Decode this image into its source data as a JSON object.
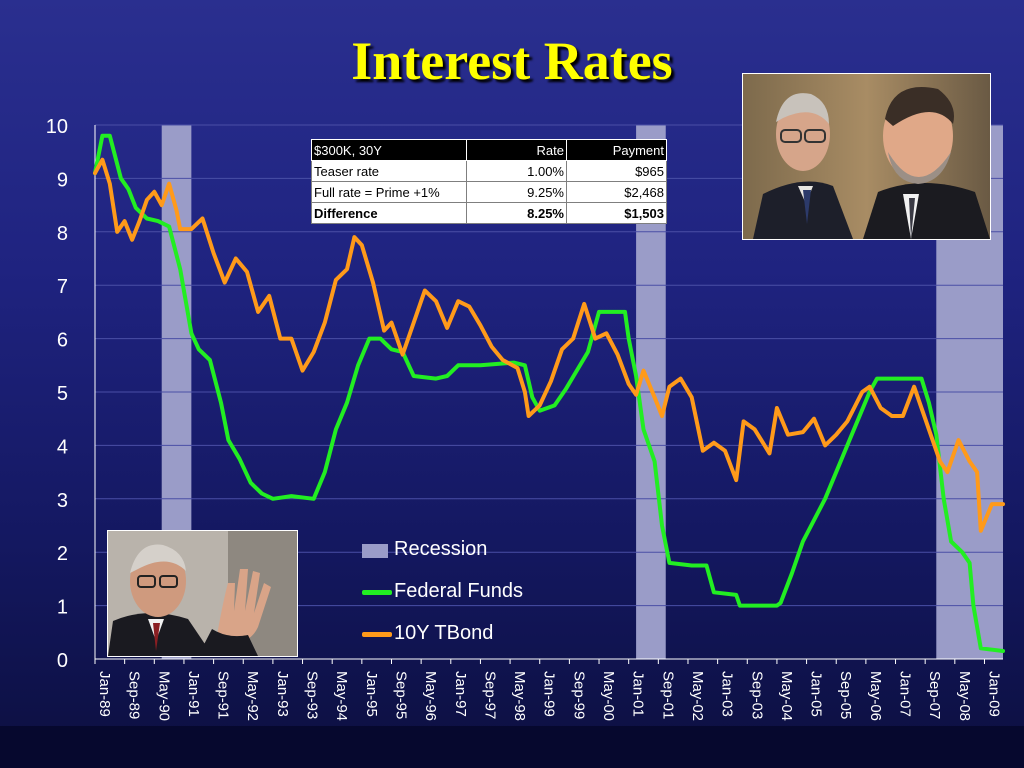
{
  "title": "Interest Rates",
  "colors": {
    "recession": "#9a9cc8",
    "fed_funds": "#22ee22",
    "tbond": "#ff9a1a",
    "title": "#ffff00",
    "axis_text": "#ffffff"
  },
  "loan_table": {
    "header": [
      "$300K, 30Y",
      "Rate",
      "Payment"
    ],
    "rows": [
      [
        "Teaser rate",
        "1.00%",
        "$965"
      ],
      [
        "Full rate = Prime +1%",
        "9.25%",
        "$2,468"
      ],
      [
        "Difference",
        "8.25%",
        "$1,503"
      ]
    ]
  },
  "legend": {
    "recession": "Recession",
    "fed_funds": "Federal Funds",
    "tbond": "10Y TBond"
  },
  "photos": [
    "greenspan-bernanke-photo",
    "greenspan-photo"
  ],
  "chart_data": {
    "type": "line",
    "xlabel": "",
    "ylabel": "",
    "ylim": [
      0,
      10
    ],
    "y_ticks": [
      0,
      1,
      2,
      3,
      4,
      5,
      6,
      7,
      8,
      9,
      10
    ],
    "x_range": [
      "1989-01",
      "2009-06"
    ],
    "x_tick_labels": [
      "Jan-89",
      "Sep-89",
      "May-90",
      "Jan-91",
      "Sep-91",
      "May-92",
      "Jan-93",
      "Sep-93",
      "May-94",
      "Jan-95",
      "Sep-95",
      "May-96",
      "Jan-97",
      "Sep-97",
      "May-98",
      "Jan-99",
      "Sep-99",
      "May-00",
      "Jan-01",
      "Sep-01",
      "May-02",
      "Jan-03",
      "Sep-03",
      "May-04",
      "Jan-05",
      "Sep-05",
      "May-06",
      "Jan-07",
      "Sep-07",
      "May-08",
      "Jan-09"
    ],
    "recessions": [
      [
        "1990-07",
        "1991-03"
      ],
      [
        "2001-03",
        "2001-11"
      ],
      [
        "2007-12",
        "2009-06"
      ]
    ],
    "series": [
      {
        "name": "Federal Funds",
        "points": [
          [
            "1989-01",
            9.1
          ],
          [
            "1989-03",
            9.8
          ],
          [
            "1989-05",
            9.8
          ],
          [
            "1989-08",
            9.0
          ],
          [
            "1989-10",
            8.8
          ],
          [
            "1989-12",
            8.45
          ],
          [
            "1990-03",
            8.25
          ],
          [
            "1990-06",
            8.2
          ],
          [
            "1990-09",
            8.1
          ],
          [
            "1990-12",
            7.3
          ],
          [
            "1991-01",
            6.9
          ],
          [
            "1991-03",
            6.1
          ],
          [
            "1991-05",
            5.8
          ],
          [
            "1991-08",
            5.6
          ],
          [
            "1991-11",
            4.8
          ],
          [
            "1992-01",
            4.1
          ],
          [
            "1992-04",
            3.75
          ],
          [
            "1992-07",
            3.3
          ],
          [
            "1992-10",
            3.1
          ],
          [
            "1993-01",
            3.0
          ],
          [
            "1993-06",
            3.05
          ],
          [
            "1993-12",
            3.0
          ],
          [
            "1994-03",
            3.5
          ],
          [
            "1994-06",
            4.3
          ],
          [
            "1994-09",
            4.8
          ],
          [
            "1994-12",
            5.5
          ],
          [
            "1995-03",
            6.0
          ],
          [
            "1995-06",
            6.0
          ],
          [
            "1995-09",
            5.8
          ],
          [
            "1995-12",
            5.75
          ],
          [
            "1996-03",
            5.3
          ],
          [
            "1996-09",
            5.25
          ],
          [
            "1996-12",
            5.3
          ],
          [
            "1997-03",
            5.5
          ],
          [
            "1997-09",
            5.5
          ],
          [
            "1998-06",
            5.55
          ],
          [
            "1998-09",
            5.5
          ],
          [
            "1998-11",
            4.9
          ],
          [
            "1999-01",
            4.65
          ],
          [
            "1999-05",
            4.75
          ],
          [
            "1999-08",
            5.05
          ],
          [
            "1999-11",
            5.4
          ],
          [
            "2000-02",
            5.75
          ],
          [
            "2000-05",
            6.5
          ],
          [
            "2000-12",
            6.5
          ],
          [
            "2001-01",
            6.0
          ],
          [
            "2001-03",
            5.3
          ],
          [
            "2001-05",
            4.3
          ],
          [
            "2001-08",
            3.7
          ],
          [
            "2001-10",
            2.5
          ],
          [
            "2001-12",
            1.8
          ],
          [
            "2002-06",
            1.75
          ],
          [
            "2002-10",
            1.75
          ],
          [
            "2002-12",
            1.25
          ],
          [
            "2003-06",
            1.2
          ],
          [
            "2003-07",
            1.0
          ],
          [
            "2004-05",
            1.0
          ],
          [
            "2004-06",
            1.05
          ],
          [
            "2004-09",
            1.6
          ],
          [
            "2004-12",
            2.2
          ],
          [
            "2005-06",
            3.0
          ],
          [
            "2005-12",
            4.0
          ],
          [
            "2006-06",
            5.0
          ],
          [
            "2006-08",
            5.25
          ],
          [
            "2007-08",
            5.25
          ],
          [
            "2007-10",
            4.8
          ],
          [
            "2007-12",
            4.2
          ],
          [
            "2008-02",
            3.0
          ],
          [
            "2008-04",
            2.2
          ],
          [
            "2008-07",
            2.0
          ],
          [
            "2008-09",
            1.8
          ],
          [
            "2008-10",
            1.0
          ],
          [
            "2008-12",
            0.2
          ],
          [
            "2009-06",
            0.15
          ]
        ]
      },
      {
        "name": "10Y TBond",
        "points": [
          [
            "1989-01",
            9.1
          ],
          [
            "1989-03",
            9.35
          ],
          [
            "1989-05",
            8.9
          ],
          [
            "1989-07",
            8.0
          ],
          [
            "1989-09",
            8.2
          ],
          [
            "1989-11",
            7.85
          ],
          [
            "1990-01",
            8.2
          ],
          [
            "1990-03",
            8.6
          ],
          [
            "1990-05",
            8.75
          ],
          [
            "1990-07",
            8.5
          ],
          [
            "1990-09",
            8.9
          ],
          [
            "1990-11",
            8.4
          ],
          [
            "1990-12",
            8.05
          ],
          [
            "1991-03",
            8.05
          ],
          [
            "1991-06",
            8.25
          ],
          [
            "1991-09",
            7.6
          ],
          [
            "1991-12",
            7.05
          ],
          [
            "1992-03",
            7.5
          ],
          [
            "1992-06",
            7.25
          ],
          [
            "1992-09",
            6.5
          ],
          [
            "1992-12",
            6.8
          ],
          [
            "1993-03",
            6.0
          ],
          [
            "1993-06",
            6.0
          ],
          [
            "1993-09",
            5.4
          ],
          [
            "1993-12",
            5.75
          ],
          [
            "1994-03",
            6.3
          ],
          [
            "1994-06",
            7.1
          ],
          [
            "1994-09",
            7.3
          ],
          [
            "1994-11",
            7.9
          ],
          [
            "1995-01",
            7.75
          ],
          [
            "1995-04",
            7.05
          ],
          [
            "1995-07",
            6.15
          ],
          [
            "1995-09",
            6.3
          ],
          [
            "1995-12",
            5.7
          ],
          [
            "1996-03",
            6.3
          ],
          [
            "1996-06",
            6.9
          ],
          [
            "1996-09",
            6.7
          ],
          [
            "1996-12",
            6.2
          ],
          [
            "1997-03",
            6.7
          ],
          [
            "1997-06",
            6.6
          ],
          [
            "1997-09",
            6.25
          ],
          [
            "1997-12",
            5.85
          ],
          [
            "1998-03",
            5.6
          ],
          [
            "1998-07",
            5.45
          ],
          [
            "1998-09",
            5.0
          ],
          [
            "1998-10",
            4.55
          ],
          [
            "1999-01",
            4.75
          ],
          [
            "1999-04",
            5.2
          ],
          [
            "1999-07",
            5.8
          ],
          [
            "1999-10",
            6.0
          ],
          [
            "2000-01",
            6.65
          ],
          [
            "2000-04",
            6.0
          ],
          [
            "2000-07",
            6.1
          ],
          [
            "2000-10",
            5.7
          ],
          [
            "2001-01",
            5.15
          ],
          [
            "2001-03",
            4.95
          ],
          [
            "2001-05",
            5.4
          ],
          [
            "2001-08",
            4.9
          ],
          [
            "2001-10",
            4.55
          ],
          [
            "2001-12",
            5.1
          ],
          [
            "2002-03",
            5.25
          ],
          [
            "2002-06",
            4.9
          ],
          [
            "2002-09",
            3.9
          ],
          [
            "2002-12",
            4.05
          ],
          [
            "2003-03",
            3.9
          ],
          [
            "2003-06",
            3.35
          ],
          [
            "2003-08",
            4.45
          ],
          [
            "2003-11",
            4.3
          ],
          [
            "2004-03",
            3.85
          ],
          [
            "2004-05",
            4.7
          ],
          [
            "2004-08",
            4.2
          ],
          [
            "2004-12",
            4.25
          ],
          [
            "2005-03",
            4.5
          ],
          [
            "2005-06",
            4.0
          ],
          [
            "2005-09",
            4.2
          ],
          [
            "2005-12",
            4.45
          ],
          [
            "2006-04",
            5.0
          ],
          [
            "2006-06",
            5.1
          ],
          [
            "2006-09",
            4.7
          ],
          [
            "2006-12",
            4.55
          ],
          [
            "2007-03",
            4.55
          ],
          [
            "2007-06",
            5.1
          ],
          [
            "2007-09",
            4.5
          ],
          [
            "2007-11",
            4.1
          ],
          [
            "2008-01",
            3.7
          ],
          [
            "2008-03",
            3.5
          ],
          [
            "2008-06",
            4.1
          ],
          [
            "2008-09",
            3.7
          ],
          [
            "2008-11",
            3.5
          ],
          [
            "2008-12",
            2.4
          ],
          [
            "2009-03",
            2.9
          ],
          [
            "2009-06",
            2.9
          ]
        ]
      }
    ]
  }
}
